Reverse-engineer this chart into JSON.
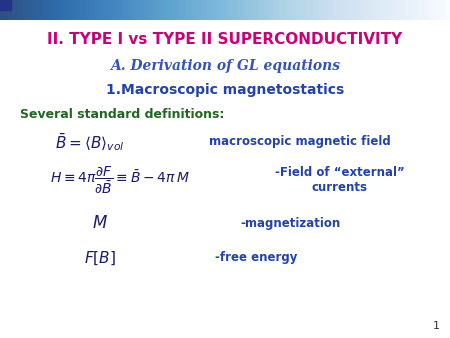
{
  "title1": "II. TYPE I vs TYPE II SUPERCONDUCTIVITY",
  "title1_color": "#CC0077",
  "title2": "A. Derivation of GL equations",
  "title2_color": "#3355BB",
  "title3": "1.Macroscopic magnetostatics",
  "title3_color": "#2244AA",
  "subtitle": "Several standard definitions:",
  "subtitle_color": "#226622",
  "eq1_label": "macroscopic magnetic field",
  "eq2_label": "-Field of “external”\ncurrents",
  "eq3_label": "-magnetization",
  "eq4_label": "-free energy",
  "eq_color": "#1A1A6E",
  "label_color": "#2244AA",
  "bg_color": "#FFFFFF",
  "page_number": "1",
  "page_number_color": "#333333"
}
